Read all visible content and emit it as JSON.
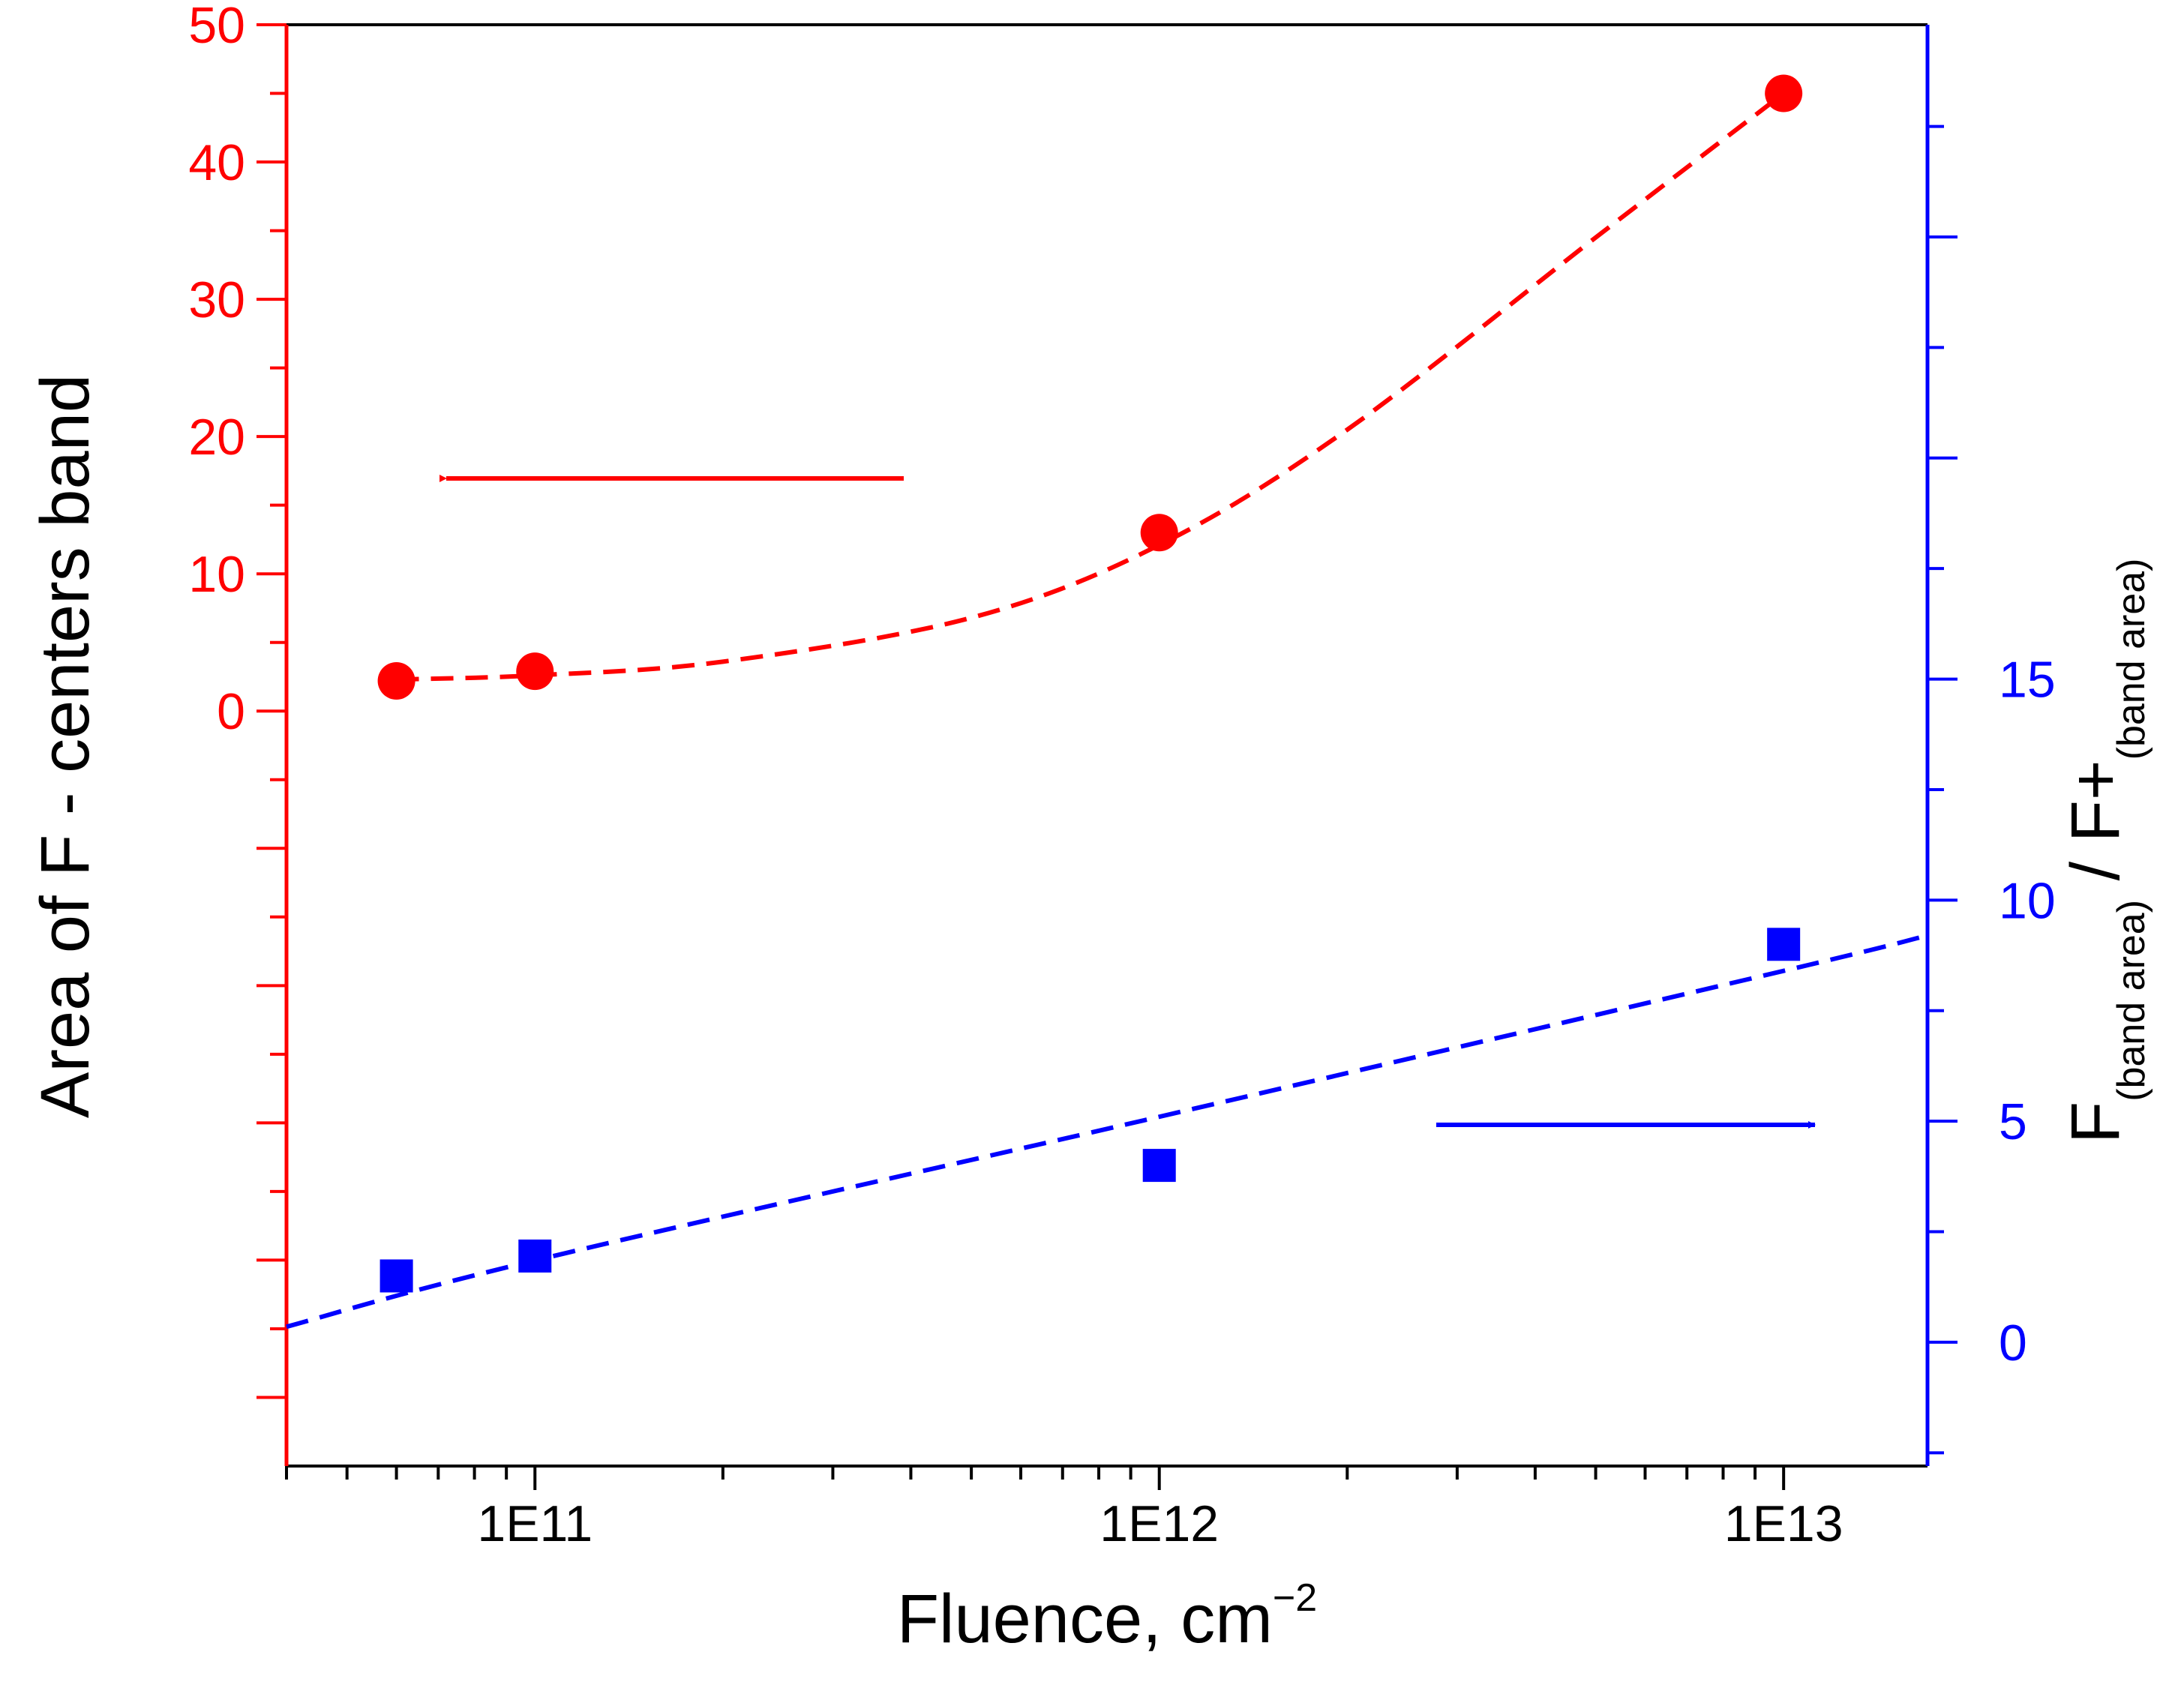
{
  "chart_data": {
    "type": "scatter",
    "x_scale": "log",
    "x_range": [
      40000000000.0,
      17000000000000.0
    ],
    "xlabel_main": "Fluence, cm",
    "xlabel_exp": "−2",
    "x_ticks": [
      {
        "value": 100000000000.0,
        "label": "1E11"
      },
      {
        "value": 1000000000000.0,
        "label": "1E12"
      },
      {
        "value": 10000000000000.0,
        "label": "1E13"
      }
    ],
    "left_axis": {
      "title": "Area of F - centers band",
      "range": [
        -55,
        50
      ],
      "tick_values": [
        0,
        10,
        20,
        30,
        40,
        50
      ],
      "tick_labels": [
        "0",
        "10",
        "20",
        "30",
        "40",
        "50"
      ],
      "color": "#ff0000"
    },
    "right_axis": {
      "title_main": "F",
      "title_sub1": "(band area)",
      "title_mid": " / F+",
      "title_sub2": "(band area)",
      "range": [
        -2.8,
        29.8
      ],
      "tick_values": [
        0,
        5,
        10,
        15
      ],
      "tick_labels": [
        "0",
        "5",
        "10",
        "15"
      ],
      "color": "#0000ff"
    },
    "series": [
      {
        "axis": "left",
        "marker": "circle",
        "color": "#ff0000",
        "x": [
          60000000000.0,
          100000000000.0,
          1000000000000.0,
          10000000000000.0
        ],
        "y": [
          2.2,
          2.9,
          13,
          45
        ],
        "fit_x": [
          60000000000.0,
          100000000000.0,
          200000000000.0,
          500000000000.0,
          1000000000000.0,
          2000000000000.0,
          5000000000000.0,
          10000000000000.0
        ],
        "fit_y": [
          2.3,
          2.6,
          3.6,
          6.8,
          12.1,
          20.5,
          34.5,
          45
        ]
      },
      {
        "axis": "right",
        "marker": "square",
        "color": "#0000ff",
        "x": [
          60000000000.0,
          100000000000.0,
          1000000000000.0,
          10000000000000.0
        ],
        "y": [
          1.5,
          1.95,
          4,
          9
        ],
        "fit_x": [
          40000000000.0,
          100000000000.0,
          1000000000000.0,
          10000000000000.0,
          17000000000000.0
        ],
        "fit_y": [
          0.35,
          1.85,
          5.1,
          8.4,
          9.2
        ]
      }
    ],
    "annotations": [
      {
        "type": "arrow",
        "direction": "left",
        "color": "#ff0000"
      },
      {
        "type": "arrow",
        "direction": "right",
        "color": "#0000ff"
      }
    ]
  }
}
